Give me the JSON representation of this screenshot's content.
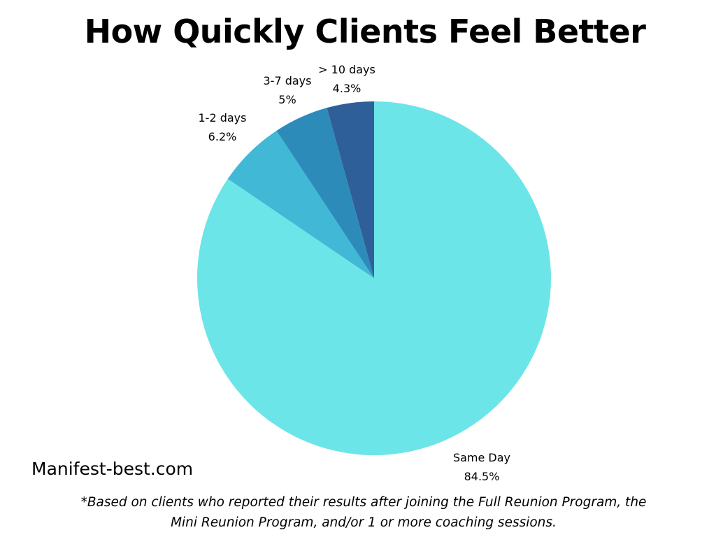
{
  "chart_data": {
    "type": "pie",
    "title": "How Quickly Clients Feel Better",
    "start_angle": "top",
    "direction": "clockwise",
    "slices": [
      {
        "label": "Same Day",
        "value": 84.5,
        "value_label": "84.5%",
        "color": "#6ce5e8"
      },
      {
        "label": "1-2 days",
        "value": 6.2,
        "value_label": "6.2%",
        "color": "#41b8d5"
      },
      {
        "label": "3-7 days",
        "value": 5,
        "value_label": "5%",
        "color": "#2d8bba"
      },
      {
        "label": "> 10 days",
        "value": 4.3,
        "value_label": "4.3%",
        "color": "#2f5f98"
      }
    ]
  },
  "footer": {
    "site": "Manifest-best.com",
    "note_line1": "*Based on clients who reported their results after joining the Full Reunion Program, the",
    "note_line2": "Mini Reunion Program, and/or 1 or more coaching sessions."
  }
}
